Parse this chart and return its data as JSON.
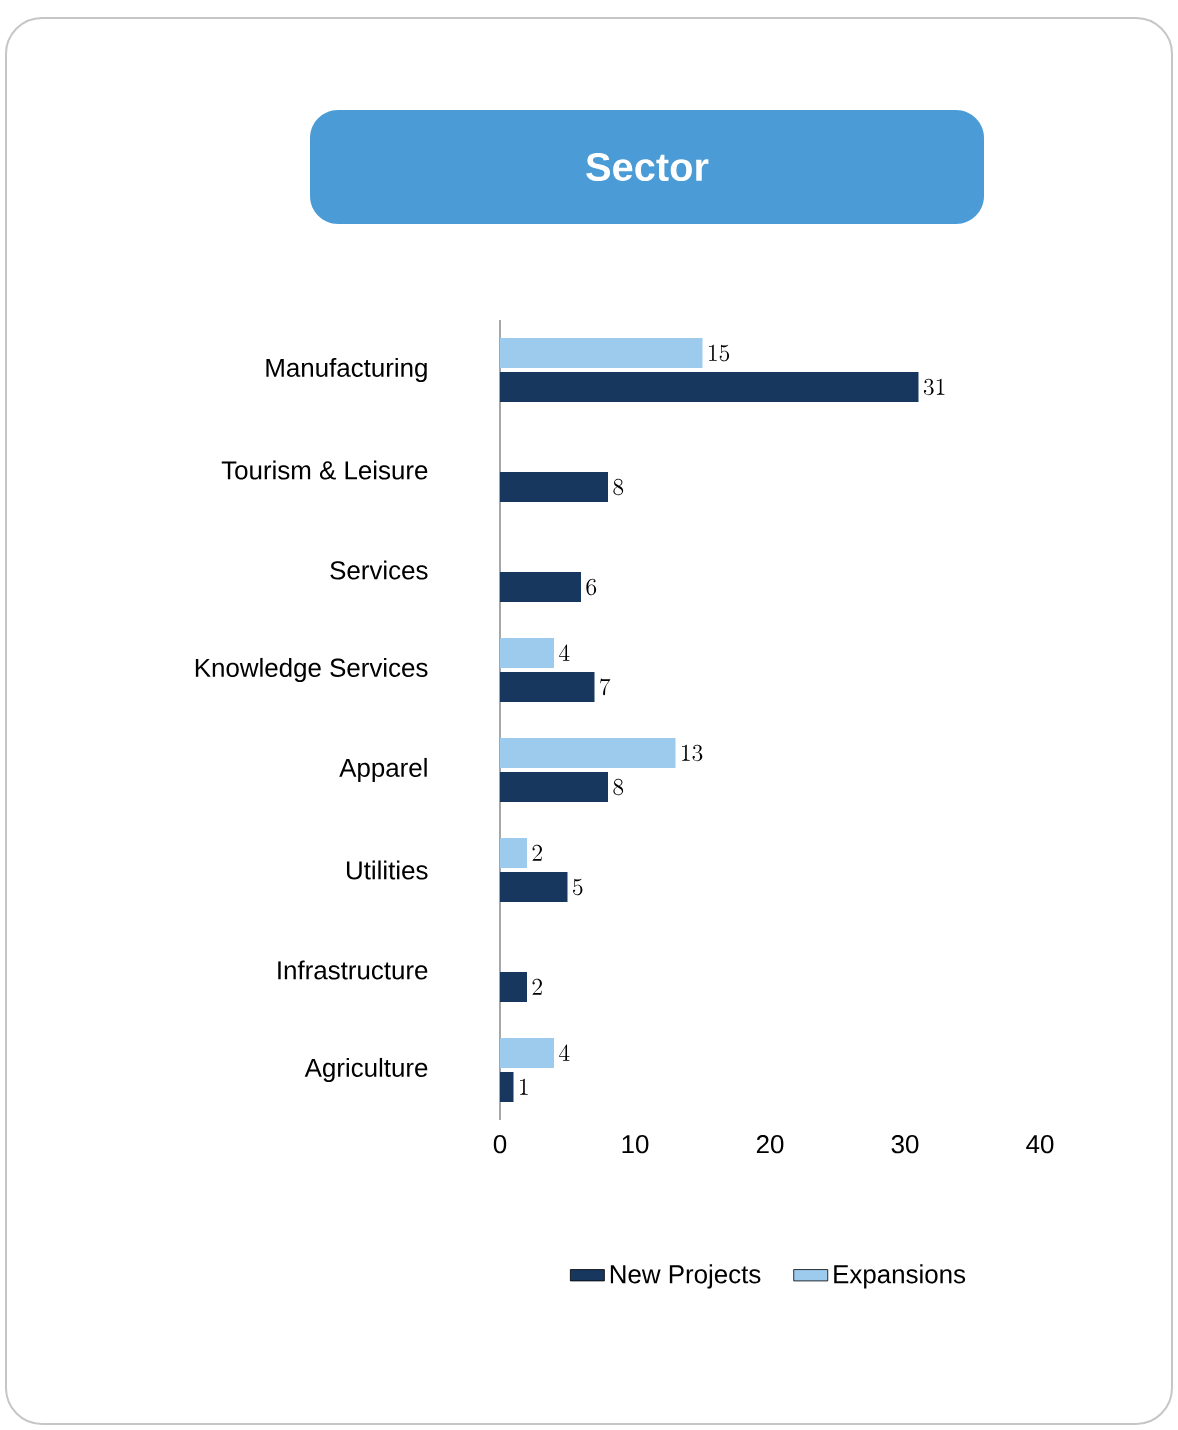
{
  "chart_data": {
    "type": "bar",
    "orientation": "horizontal",
    "title": "Sector",
    "categories": [
      "Manufacturing",
      "Tourism & Leisure",
      "Services",
      "Knowledge Services",
      "Apparel",
      "Utilities",
      "Infrastructure",
      "Agriculture"
    ],
    "series": [
      {
        "name": "New Projects",
        "color": "#17375e",
        "values": [
          31,
          8,
          6,
          7,
          8,
          5,
          2,
          1
        ]
      },
      {
        "name": "Expansions",
        "color": "#9dcbed",
        "values": [
          15,
          null,
          null,
          4,
          13,
          2,
          null,
          4
        ]
      }
    ],
    "xlim": [
      0,
      40
    ],
    "xticks": [
      0,
      10,
      20,
      30,
      40
    ],
    "data_labels": true,
    "legend": "bottom",
    "grid": false
  }
}
